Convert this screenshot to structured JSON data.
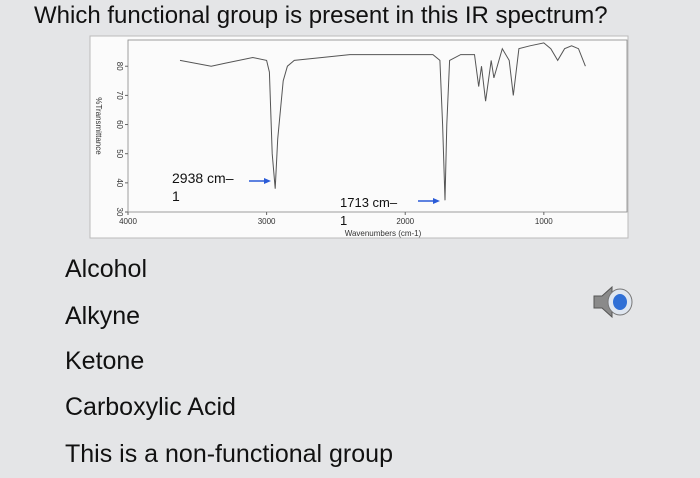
{
  "question": "Which functional group is present in this IR spectrum?",
  "chart_data": {
    "type": "line",
    "x_label": "Wavenumbers (cm-1)",
    "y_label": "%Transmittance",
    "annotations": [
      {
        "text": "2938 cm–1",
        "x": 2938
      },
      {
        "text": "1713 cm–1",
        "x": 1713
      }
    ],
    "x": [
      3625,
      3400,
      3300,
      3100,
      3000,
      2980,
      2960,
      2938,
      2920,
      2880,
      2850,
      2800,
      2600,
      2400,
      2200,
      2000,
      1800,
      1750,
      1730,
      1713,
      1700,
      1680,
      1600,
      1500,
      1470,
      1450,
      1420,
      1380,
      1360,
      1300,
      1250,
      1220,
      1180,
      1100,
      1000,
      950,
      900,
      850,
      800,
      750,
      700
    ],
    "values": [
      82,
      80,
      81,
      83,
      82,
      78,
      50,
      38,
      55,
      75,
      80,
      82,
      83,
      84,
      84,
      84,
      84,
      82,
      60,
      34,
      60,
      82,
      84,
      84,
      73,
      80,
      68,
      82,
      76,
      86,
      82,
      70,
      86,
      87,
      88,
      86,
      82,
      86,
      87,
      86,
      80
    ],
    "color": "#555555",
    "xlim": [
      4000,
      400
    ],
    "ylim": [
      30,
      89
    ],
    "xticks": [
      4000,
      3000,
      2000,
      1000
    ],
    "yticks": [
      30,
      40,
      50,
      60,
      70,
      80
    ]
  },
  "options": [
    "Alcohol",
    "Alkyne",
    "Ketone",
    "Carboxylic Acid",
    "This is a non-functional group"
  ]
}
